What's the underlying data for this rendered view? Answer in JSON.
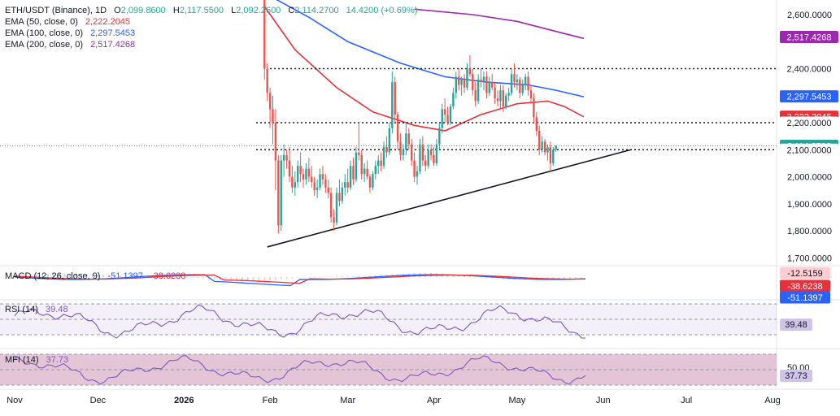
{
  "header": {
    "symbol": "ETH/USDT (Binance), 1D",
    "ohlc": {
      "o_label": "O",
      "open": "2,099.8600",
      "h_label": "H",
      "high": "2,117.5500",
      "l_label": "L",
      "low": "2,092.2600",
      "c_label": "C",
      "close": "2,114.2700",
      "change": "14.4200 (+0.69%)"
    },
    "ema50": {
      "label": "EMA (50, close, 0)",
      "value": "2,222.2045"
    },
    "ema100": {
      "label": "EMA (100, close, 0)",
      "value": "2,297.5453"
    },
    "ema200": {
      "label": "EMA (200, close, 0)",
      "value": "2,517.4268"
    }
  },
  "indicators": {
    "macd": {
      "label": "MACD (12, 26, close, 9)",
      "values": [
        "-51.1397",
        "-38.6238"
      ],
      "badges": [
        "-12.5159",
        "-38.6238",
        "-51.1397"
      ]
    },
    "rsi": {
      "label": "RSI (14)",
      "value": "39.48"
    },
    "mfi": {
      "label": "MFI (14)",
      "value": "37.73",
      "axis_label": "50.00"
    }
  },
  "price_axis": {
    "ticks": [
      "2,600.0000",
      "2,400.0000",
      "2,200.0000",
      "2,000.0000",
      "1,900.0000",
      "1,800.0000",
      "1,700.0000"
    ],
    "badges": {
      "ema200": "2,517.4268",
      "level_2400": "2,400.0000",
      "ema100": "2,297.5453",
      "ema50": "2,222.2045",
      "level_2200": "2,200.0000",
      "last": "2,114.2700",
      "level_2100": "2,100.0000"
    }
  },
  "time_axis": {
    "labels": [
      "Nov",
      "Dec",
      "2026",
      "Feb",
      "Mar",
      "Apr",
      "May",
      "Jun",
      "Jul",
      "Aug"
    ]
  },
  "colors": {
    "up": "#26a69a",
    "down": "#ef5350",
    "ema50": "#e8303a",
    "ema100": "#2962ff",
    "ema200": "#9c27b0",
    "last": "#26a69a",
    "rsi": "#7e57c2",
    "mfi": "#7e57c2",
    "macd_line": "#2962ff",
    "signal_line": "#e8303a"
  },
  "chart_data": {
    "type": "candlestick",
    "title": "ETH/USDT (Binance), 1D",
    "ylim": [
      1700,
      2640
    ],
    "horizontal_levels": [
      2400,
      2200,
      2100
    ],
    "trendline": {
      "from": {
        "date": "2026-01-31",
        "price": 1740
      },
      "to": {
        "date": "2026-06-11",
        "price": 2100
      }
    },
    "candles": [
      {
        "date": "2026-01-30",
        "open": 2700,
        "high": 2700,
        "low": 2360,
        "close": 2400
      },
      {
        "date": "2026-01-31",
        "open": 2400,
        "high": 2420,
        "low": 2280,
        "close": 2310
      },
      {
        "date": "2026-02-01",
        "open": 2310,
        "high": 2330,
        "low": 2180,
        "close": 2250
      },
      {
        "date": "2026-02-02",
        "open": 2250,
        "high": 2300,
        "low": 2120,
        "close": 2200
      },
      {
        "date": "2026-02-03",
        "open": 2200,
        "high": 2250,
        "low": 1950,
        "close": 2060
      },
      {
        "date": "2026-02-04",
        "open": 2060,
        "high": 2080,
        "low": 1790,
        "close": 1820
      },
      {
        "date": "2026-02-05",
        "open": 1820,
        "high": 2080,
        "low": 1800,
        "close": 2060
      },
      {
        "date": "2026-02-06",
        "open": 2060,
        "high": 2120,
        "low": 2000,
        "close": 2080
      },
      {
        "date": "2026-02-07",
        "open": 2080,
        "high": 2100,
        "low": 2030,
        "close": 2060
      },
      {
        "date": "2026-02-08",
        "open": 2060,
        "high": 2110,
        "low": 1980,
        "close": 2000
      },
      {
        "date": "2026-02-09",
        "open": 2000,
        "high": 2040,
        "low": 1940,
        "close": 1960
      },
      {
        "date": "2026-02-10",
        "open": 1960,
        "high": 2020,
        "low": 1930,
        "close": 1980
      },
      {
        "date": "2026-02-11",
        "open": 1980,
        "high": 2060,
        "low": 1960,
        "close": 2040
      },
      {
        "date": "2026-02-12",
        "open": 2040,
        "high": 2090,
        "low": 1980,
        "close": 2010
      },
      {
        "date": "2026-02-13",
        "open": 2010,
        "high": 2030,
        "low": 1960,
        "close": 1990
      },
      {
        "date": "2026-02-14",
        "open": 1990,
        "high": 2050,
        "low": 1970,
        "close": 2030
      },
      {
        "date": "2026-02-15",
        "open": 2030,
        "high": 2070,
        "low": 1980,
        "close": 2000
      },
      {
        "date": "2026-02-16",
        "open": 2000,
        "high": 2040,
        "low": 1960,
        "close": 1980
      },
      {
        "date": "2026-02-17",
        "open": 1980,
        "high": 2000,
        "low": 1930,
        "close": 1950
      },
      {
        "date": "2026-02-18",
        "open": 1950,
        "high": 1990,
        "low": 1920,
        "close": 1960
      },
      {
        "date": "2026-02-19",
        "open": 1960,
        "high": 2030,
        "low": 1950,
        "close": 2010
      },
      {
        "date": "2026-02-20",
        "open": 2010,
        "high": 2040,
        "low": 1970,
        "close": 1990
      },
      {
        "date": "2026-02-21",
        "open": 1990,
        "high": 2010,
        "low": 1940,
        "close": 1960
      },
      {
        "date": "2026-02-22",
        "open": 1960,
        "high": 1990,
        "low": 1920,
        "close": 1940
      },
      {
        "date": "2026-02-23",
        "open": 1940,
        "high": 1960,
        "low": 1830,
        "close": 1850
      },
      {
        "date": "2026-02-24",
        "open": 1850,
        "high": 1880,
        "low": 1800,
        "close": 1830
      },
      {
        "date": "2026-02-25",
        "open": 1830,
        "high": 1960,
        "low": 1820,
        "close": 1940
      },
      {
        "date": "2026-02-26",
        "open": 1940,
        "high": 1990,
        "low": 1890,
        "close": 1910
      },
      {
        "date": "2026-02-27",
        "open": 1910,
        "high": 1980,
        "low": 1900,
        "close": 1960
      },
      {
        "date": "2026-02-28",
        "open": 1960,
        "high": 2010,
        "low": 1930,
        "close": 1980
      },
      {
        "date": "2026-03-01",
        "open": 1980,
        "high": 2030,
        "low": 1940,
        "close": 1960
      },
      {
        "date": "2026-03-02",
        "open": 1960,
        "high": 2060,
        "low": 1950,
        "close": 2040
      },
      {
        "date": "2026-03-03",
        "open": 2040,
        "high": 2070,
        "low": 1970,
        "close": 1990
      },
      {
        "date": "2026-03-04",
        "open": 1990,
        "high": 2110,
        "low": 1980,
        "close": 2090
      },
      {
        "date": "2026-03-05",
        "open": 2090,
        "high": 2200,
        "low": 2060,
        "close": 2080
      },
      {
        "date": "2026-03-06",
        "open": 2080,
        "high": 2100,
        "low": 1990,
        "close": 2010
      },
      {
        "date": "2026-03-07",
        "open": 2010,
        "high": 2050,
        "low": 1980,
        "close": 2030
      },
      {
        "date": "2026-03-08",
        "open": 2030,
        "high": 2060,
        "low": 1990,
        "close": 2000
      },
      {
        "date": "2026-03-09",
        "open": 2000,
        "high": 2010,
        "low": 1940,
        "close": 1960
      },
      {
        "date": "2026-03-10",
        "open": 1960,
        "high": 2020,
        "low": 1950,
        "close": 2010
      },
      {
        "date": "2026-03-11",
        "open": 2010,
        "high": 2060,
        "low": 1990,
        "close": 2040
      },
      {
        "date": "2026-03-12",
        "open": 2040,
        "high": 2080,
        "low": 2010,
        "close": 2060
      },
      {
        "date": "2026-03-13",
        "open": 2060,
        "high": 2090,
        "low": 2020,
        "close": 2040
      },
      {
        "date": "2026-03-14",
        "open": 2040,
        "high": 2130,
        "low": 2030,
        "close": 2110
      },
      {
        "date": "2026-03-15",
        "open": 2110,
        "high": 2150,
        "low": 2070,
        "close": 2090
      },
      {
        "date": "2026-03-16",
        "open": 2090,
        "high": 2200,
        "low": 2080,
        "close": 2180
      },
      {
        "date": "2026-03-17",
        "open": 2180,
        "high": 2390,
        "low": 2160,
        "close": 2350
      },
      {
        "date": "2026-03-18",
        "open": 2350,
        "high": 2370,
        "low": 2200,
        "close": 2230
      },
      {
        "date": "2026-03-19",
        "open": 2230,
        "high": 2240,
        "low": 2100,
        "close": 2130
      },
      {
        "date": "2026-03-20",
        "open": 2130,
        "high": 2160,
        "low": 2060,
        "close": 2080
      },
      {
        "date": "2026-03-21",
        "open": 2080,
        "high": 2120,
        "low": 2060,
        "close": 2100
      },
      {
        "date": "2026-03-22",
        "open": 2100,
        "high": 2200,
        "low": 2080,
        "close": 2160
      },
      {
        "date": "2026-03-23",
        "open": 2160,
        "high": 2180,
        "low": 2100,
        "close": 2120
      },
      {
        "date": "2026-03-24",
        "open": 2120,
        "high": 2140,
        "low": 2040,
        "close": 2060
      },
      {
        "date": "2026-03-25",
        "open": 2060,
        "high": 2090,
        "low": 1980,
        "close": 2000
      },
      {
        "date": "2026-03-26",
        "open": 2000,
        "high": 2040,
        "low": 1970,
        "close": 2020
      },
      {
        "date": "2026-03-27",
        "open": 2020,
        "high": 2140,
        "low": 2010,
        "close": 2120
      },
      {
        "date": "2026-03-28",
        "open": 2120,
        "high": 2150,
        "low": 2040,
        "close": 2060
      },
      {
        "date": "2026-03-29",
        "open": 2060,
        "high": 2080,
        "low": 2020,
        "close": 2040
      },
      {
        "date": "2026-03-30",
        "open": 2040,
        "high": 2120,
        "low": 2030,
        "close": 2100
      },
      {
        "date": "2026-03-31",
        "open": 2100,
        "high": 2120,
        "low": 2060,
        "close": 2080
      },
      {
        "date": "2026-04-01",
        "open": 2080,
        "high": 2110,
        "low": 2040,
        "close": 2050
      },
      {
        "date": "2026-04-02",
        "open": 2050,
        "high": 2140,
        "low": 2040,
        "close": 2120
      },
      {
        "date": "2026-04-03",
        "open": 2120,
        "high": 2200,
        "low": 2100,
        "close": 2180
      },
      {
        "date": "2026-04-04",
        "open": 2180,
        "high": 2270,
        "low": 2160,
        "close": 2250
      },
      {
        "date": "2026-04-05",
        "open": 2250,
        "high": 2290,
        "low": 2200,
        "close": 2230
      },
      {
        "date": "2026-04-06",
        "open": 2230,
        "high": 2260,
        "low": 2190,
        "close": 2200
      },
      {
        "date": "2026-04-07",
        "open": 2200,
        "high": 2270,
        "low": 2190,
        "close": 2260
      },
      {
        "date": "2026-04-08",
        "open": 2260,
        "high": 2330,
        "low": 2250,
        "close": 2310
      },
      {
        "date": "2026-04-09",
        "open": 2310,
        "high": 2390,
        "low": 2290,
        "close": 2370
      },
      {
        "date": "2026-04-10",
        "open": 2370,
        "high": 2400,
        "low": 2320,
        "close": 2340
      },
      {
        "date": "2026-04-11",
        "open": 2340,
        "high": 2370,
        "low": 2300,
        "close": 2360
      },
      {
        "date": "2026-04-12",
        "open": 2360,
        "high": 2380,
        "low": 2310,
        "close": 2330
      },
      {
        "date": "2026-04-13",
        "open": 2330,
        "high": 2420,
        "low": 2320,
        "close": 2400
      },
      {
        "date": "2026-04-14",
        "open": 2400,
        "high": 2450,
        "low": 2370,
        "close": 2380
      },
      {
        "date": "2026-04-15",
        "open": 2380,
        "high": 2400,
        "low": 2300,
        "close": 2320
      },
      {
        "date": "2026-04-16",
        "open": 2320,
        "high": 2350,
        "low": 2260,
        "close": 2280
      },
      {
        "date": "2026-04-17",
        "open": 2280,
        "high": 2380,
        "low": 2270,
        "close": 2360
      },
      {
        "date": "2026-04-18",
        "open": 2360,
        "high": 2400,
        "low": 2330,
        "close": 2350
      },
      {
        "date": "2026-04-19",
        "open": 2350,
        "high": 2390,
        "low": 2320,
        "close": 2370
      },
      {
        "date": "2026-04-20",
        "open": 2370,
        "high": 2390,
        "low": 2290,
        "close": 2310
      },
      {
        "date": "2026-04-21",
        "open": 2310,
        "high": 2370,
        "low": 2300,
        "close": 2350
      },
      {
        "date": "2026-04-22",
        "open": 2350,
        "high": 2380,
        "low": 2320,
        "close": 2330
      },
      {
        "date": "2026-04-23",
        "open": 2330,
        "high": 2350,
        "low": 2270,
        "close": 2290
      },
      {
        "date": "2026-04-24",
        "open": 2290,
        "high": 2320,
        "low": 2260,
        "close": 2280
      },
      {
        "date": "2026-04-25",
        "open": 2280,
        "high": 2340,
        "low": 2250,
        "close": 2320
      },
      {
        "date": "2026-04-26",
        "open": 2320,
        "high": 2340,
        "low": 2240,
        "close": 2260
      },
      {
        "date": "2026-04-27",
        "open": 2260,
        "high": 2310,
        "low": 2250,
        "close": 2300
      },
      {
        "date": "2026-04-28",
        "open": 2300,
        "high": 2330,
        "low": 2280,
        "close": 2310
      },
      {
        "date": "2026-04-29",
        "open": 2310,
        "high": 2400,
        "low": 2300,
        "close": 2380
      },
      {
        "date": "2026-04-30",
        "open": 2380,
        "high": 2420,
        "low": 2330,
        "close": 2350
      },
      {
        "date": "2026-05-01",
        "open": 2350,
        "high": 2380,
        "low": 2320,
        "close": 2360
      },
      {
        "date": "2026-05-02",
        "open": 2360,
        "high": 2370,
        "low": 2290,
        "close": 2310
      },
      {
        "date": "2026-05-03",
        "open": 2310,
        "high": 2360,
        "low": 2300,
        "close": 2340
      },
      {
        "date": "2026-05-04",
        "open": 2340,
        "high": 2380,
        "low": 2320,
        "close": 2370
      },
      {
        "date": "2026-05-05",
        "open": 2370,
        "high": 2390,
        "low": 2300,
        "close": 2320
      },
      {
        "date": "2026-05-06",
        "open": 2320,
        "high": 2340,
        "low": 2270,
        "close": 2290
      },
      {
        "date": "2026-05-07",
        "open": 2290,
        "high": 2310,
        "low": 2200,
        "close": 2220
      },
      {
        "date": "2026-05-08",
        "open": 2220,
        "high": 2240,
        "low": 2150,
        "close": 2170
      },
      {
        "date": "2026-05-09",
        "open": 2170,
        "high": 2190,
        "low": 2080,
        "close": 2100
      },
      {
        "date": "2026-05-10",
        "open": 2100,
        "high": 2150,
        "low": 2090,
        "close": 2130
      },
      {
        "date": "2026-05-11",
        "open": 2130,
        "high": 2140,
        "low": 2080,
        "close": 2090
      },
      {
        "date": "2026-05-12",
        "open": 2090,
        "high": 2120,
        "low": 2060,
        "close": 2110
      },
      {
        "date": "2026-05-13",
        "open": 2110,
        "high": 2130,
        "low": 2020,
        "close": 2050
      },
      {
        "date": "2026-05-14",
        "open": 2050,
        "high": 2110,
        "low": 2040,
        "close": 2100
      },
      {
        "date": "2026-05-15",
        "open": 2100,
        "high": 2117.55,
        "low": 2092.26,
        "close": 2114.27
      }
    ]
  }
}
